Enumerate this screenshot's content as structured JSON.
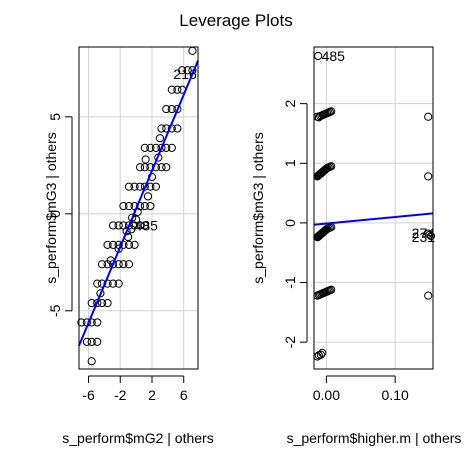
{
  "title": "Leverage Plots",
  "chart_data": [
    {
      "type": "scatter",
      "xlabel": "s_perform$mG2 | others",
      "ylabel": "s_perform$mG3  | others",
      "xlim": [
        -7.2,
        7.8
      ],
      "ylim": [
        -8.0,
        8.6
      ],
      "xticks": [
        -6,
        -2,
        2,
        6
      ],
      "xtick_labels": [
        "-6",
        "-2",
        "2",
        "6"
      ],
      "yticks": [
        -5,
        0,
        5
      ],
      "ytick_labels": [
        "-5",
        "0",
        "5"
      ],
      "grid": true,
      "fit_line": {
        "x": [
          -7.2,
          7.8
        ],
        "y": [
          -6.8,
          7.9
        ],
        "color": "#0000ff"
      },
      "point_labels": [
        {
          "text": "216",
          "x": 4.7,
          "y": 7.2
        },
        {
          "text": "485",
          "x": -0.2,
          "y": -0.6
        }
      ],
      "points": [
        [
          -6.9,
          -5.6
        ],
        [
          -6.2,
          -5.6
        ],
        [
          -5.6,
          -5.6
        ],
        [
          -4.9,
          -5.6
        ],
        [
          -6.2,
          -6.6
        ],
        [
          -5.6,
          -6.6
        ],
        [
          -4.9,
          -6.6
        ],
        [
          -5.6,
          -7.6
        ],
        [
          -5.6,
          -4.6
        ],
        [
          -4.9,
          -4.6
        ],
        [
          -4.3,
          -4.6
        ],
        [
          -3.6,
          -4.6
        ],
        [
          -4.9,
          -3.6
        ],
        [
          -4.3,
          -3.6
        ],
        [
          -3.6,
          -3.6
        ],
        [
          -2.9,
          -3.6
        ],
        [
          -2.2,
          -3.6
        ],
        [
          -4.3,
          -2.6
        ],
        [
          -3.6,
          -2.6
        ],
        [
          -2.9,
          -2.6
        ],
        [
          -2.2,
          -2.6
        ],
        [
          -1.6,
          -2.6
        ],
        [
          -0.9,
          -2.6
        ],
        [
          -3.6,
          -1.6
        ],
        [
          -2.9,
          -1.6
        ],
        [
          -2.2,
          -1.6
        ],
        [
          -1.6,
          -1.6
        ],
        [
          -0.9,
          -1.6
        ],
        [
          -0.2,
          -1.6
        ],
        [
          -2.9,
          -0.6
        ],
        [
          -2.2,
          -0.6
        ],
        [
          -1.6,
          -0.6
        ],
        [
          -0.9,
          -0.6
        ],
        [
          -0.2,
          -0.6
        ],
        [
          0.5,
          -0.6
        ],
        [
          1.1,
          -0.6
        ],
        [
          -1.6,
          0.4
        ],
        [
          -0.9,
          0.4
        ],
        [
          -0.2,
          0.4
        ],
        [
          0.5,
          0.4
        ],
        [
          1.1,
          0.4
        ],
        [
          1.8,
          0.4
        ],
        [
          -0.9,
          1.4
        ],
        [
          -0.2,
          1.4
        ],
        [
          0.5,
          1.4
        ],
        [
          1.1,
          1.4
        ],
        [
          1.8,
          1.4
        ],
        [
          2.5,
          1.4
        ],
        [
          0.5,
          2.4
        ],
        [
          1.1,
          2.4
        ],
        [
          1.8,
          2.4
        ],
        [
          2.5,
          2.4
        ],
        [
          3.2,
          2.4
        ],
        [
          3.8,
          2.4
        ],
        [
          1.1,
          3.4
        ],
        [
          1.8,
          3.4
        ],
        [
          2.5,
          3.4
        ],
        [
          3.2,
          3.4
        ],
        [
          3.8,
          3.4
        ],
        [
          4.5,
          3.4
        ],
        [
          3.2,
          4.4
        ],
        [
          3.8,
          4.4
        ],
        [
          4.5,
          4.4
        ],
        [
          5.2,
          4.4
        ],
        [
          3.8,
          5.4
        ],
        [
          4.5,
          5.4
        ],
        [
          5.2,
          5.4
        ],
        [
          4.5,
          6.4
        ],
        [
          5.2,
          6.4
        ],
        [
          5.8,
          6.4
        ],
        [
          5.8,
          7.4
        ],
        [
          6.5,
          7.4
        ],
        [
          7.1,
          7.4
        ],
        [
          7.1,
          8.4
        ],
        [
          -2.2,
          -1.8
        ],
        [
          -1.0,
          -1.2
        ],
        [
          0.2,
          0.1
        ],
        [
          -0.5,
          -0.2
        ],
        [
          1.5,
          0.9
        ],
        [
          2.0,
          1.9
        ],
        [
          -3.2,
          -2.4
        ],
        [
          -1.2,
          -0.9
        ],
        [
          0.0,
          -0.3
        ],
        [
          -0.6,
          -0.8
        ],
        [
          1.2,
          2.8
        ],
        [
          2.8,
          2.9
        ],
        [
          -4.5,
          -4.1
        ],
        [
          3.0,
          3.9
        ]
      ]
    },
    {
      "type": "scatter",
      "xlabel": "s_perform$higher.m | others",
      "ylabel": "s_perform$mG3  | others",
      "xlim": [
        -0.018,
        0.155
      ],
      "ylim": [
        -2.45,
        2.95
      ],
      "xticks": [
        0.0,
        0.1
      ],
      "xtick_labels": [
        "0.00",
        "0.10"
      ],
      "yticks": [
        -2,
        -1,
        0,
        1,
        2
      ],
      "ytick_labels": [
        "-2",
        "-1",
        "0",
        "1",
        "2"
      ],
      "grid": true,
      "fit_line": {
        "x": [
          -0.018,
          0.155
        ],
        "y": [
          -0.03,
          0.16
        ],
        "color": "#0000ff"
      },
      "point_labels": [
        {
          "text": "485",
          "x": -0.007,
          "y": 2.8
        },
        {
          "text": "274",
          "x": 0.124,
          "y": -0.17
        },
        {
          "text": "231",
          "x": 0.124,
          "y": -0.24
        }
      ],
      "points": [
        [
          -0.012,
          2.8
        ],
        [
          -0.013,
          1.78
        ],
        [
          -0.011,
          1.77
        ],
        [
          -0.009,
          1.79
        ],
        [
          -0.007,
          1.8
        ],
        [
          -0.005,
          1.81
        ],
        [
          -0.003,
          1.82
        ],
        [
          -0.001,
          1.83
        ],
        [
          0.001,
          1.84
        ],
        [
          0.003,
          1.85
        ],
        [
          0.005,
          1.86
        ],
        [
          0.007,
          1.87
        ],
        [
          -0.013,
          0.78
        ],
        [
          -0.012,
          0.79
        ],
        [
          -0.011,
          0.8
        ],
        [
          -0.01,
          0.81
        ],
        [
          -0.009,
          0.82
        ],
        [
          -0.008,
          0.83
        ],
        [
          -0.007,
          0.84
        ],
        [
          -0.006,
          0.85
        ],
        [
          -0.005,
          0.86
        ],
        [
          -0.004,
          0.87
        ],
        [
          -0.003,
          0.88
        ],
        [
          -0.002,
          0.89
        ],
        [
          -0.001,
          0.9
        ],
        [
          0.0,
          0.91
        ],
        [
          0.001,
          0.92
        ],
        [
          0.003,
          0.93
        ],
        [
          0.005,
          0.94
        ],
        [
          0.007,
          0.95
        ],
        [
          -0.013,
          -0.24
        ],
        [
          -0.012,
          -0.23
        ],
        [
          -0.011,
          -0.22
        ],
        [
          -0.01,
          -0.21
        ],
        [
          -0.009,
          -0.2
        ],
        [
          -0.008,
          -0.19
        ],
        [
          -0.007,
          -0.18
        ],
        [
          -0.006,
          -0.17
        ],
        [
          -0.005,
          -0.16
        ],
        [
          -0.004,
          -0.15
        ],
        [
          -0.003,
          -0.14
        ],
        [
          -0.002,
          -0.13
        ],
        [
          -0.001,
          -0.12
        ],
        [
          0.0,
          -0.11
        ],
        [
          0.001,
          -0.1
        ],
        [
          0.003,
          -0.09
        ],
        [
          0.005,
          -0.08
        ],
        [
          0.007,
          -0.07
        ],
        [
          -0.013,
          -1.22
        ],
        [
          -0.011,
          -1.21
        ],
        [
          -0.009,
          -1.2
        ],
        [
          -0.007,
          -1.19
        ],
        [
          -0.005,
          -1.18
        ],
        [
          -0.003,
          -1.17
        ],
        [
          -0.001,
          -1.16
        ],
        [
          0.001,
          -1.15
        ],
        [
          0.003,
          -1.14
        ],
        [
          0.005,
          -1.13
        ],
        [
          0.007,
          -1.12
        ],
        [
          -0.013,
          -2.24
        ],
        [
          -0.011,
          -2.22
        ],
        [
          -0.008,
          -2.21
        ],
        [
          -0.006,
          -2.18
        ],
        [
          0.148,
          1.78
        ],
        [
          0.148,
          0.78
        ],
        [
          0.148,
          -0.18
        ],
        [
          0.15,
          -0.2
        ],
        [
          0.152,
          -0.22
        ],
        [
          0.148,
          -1.22
        ]
      ]
    }
  ]
}
